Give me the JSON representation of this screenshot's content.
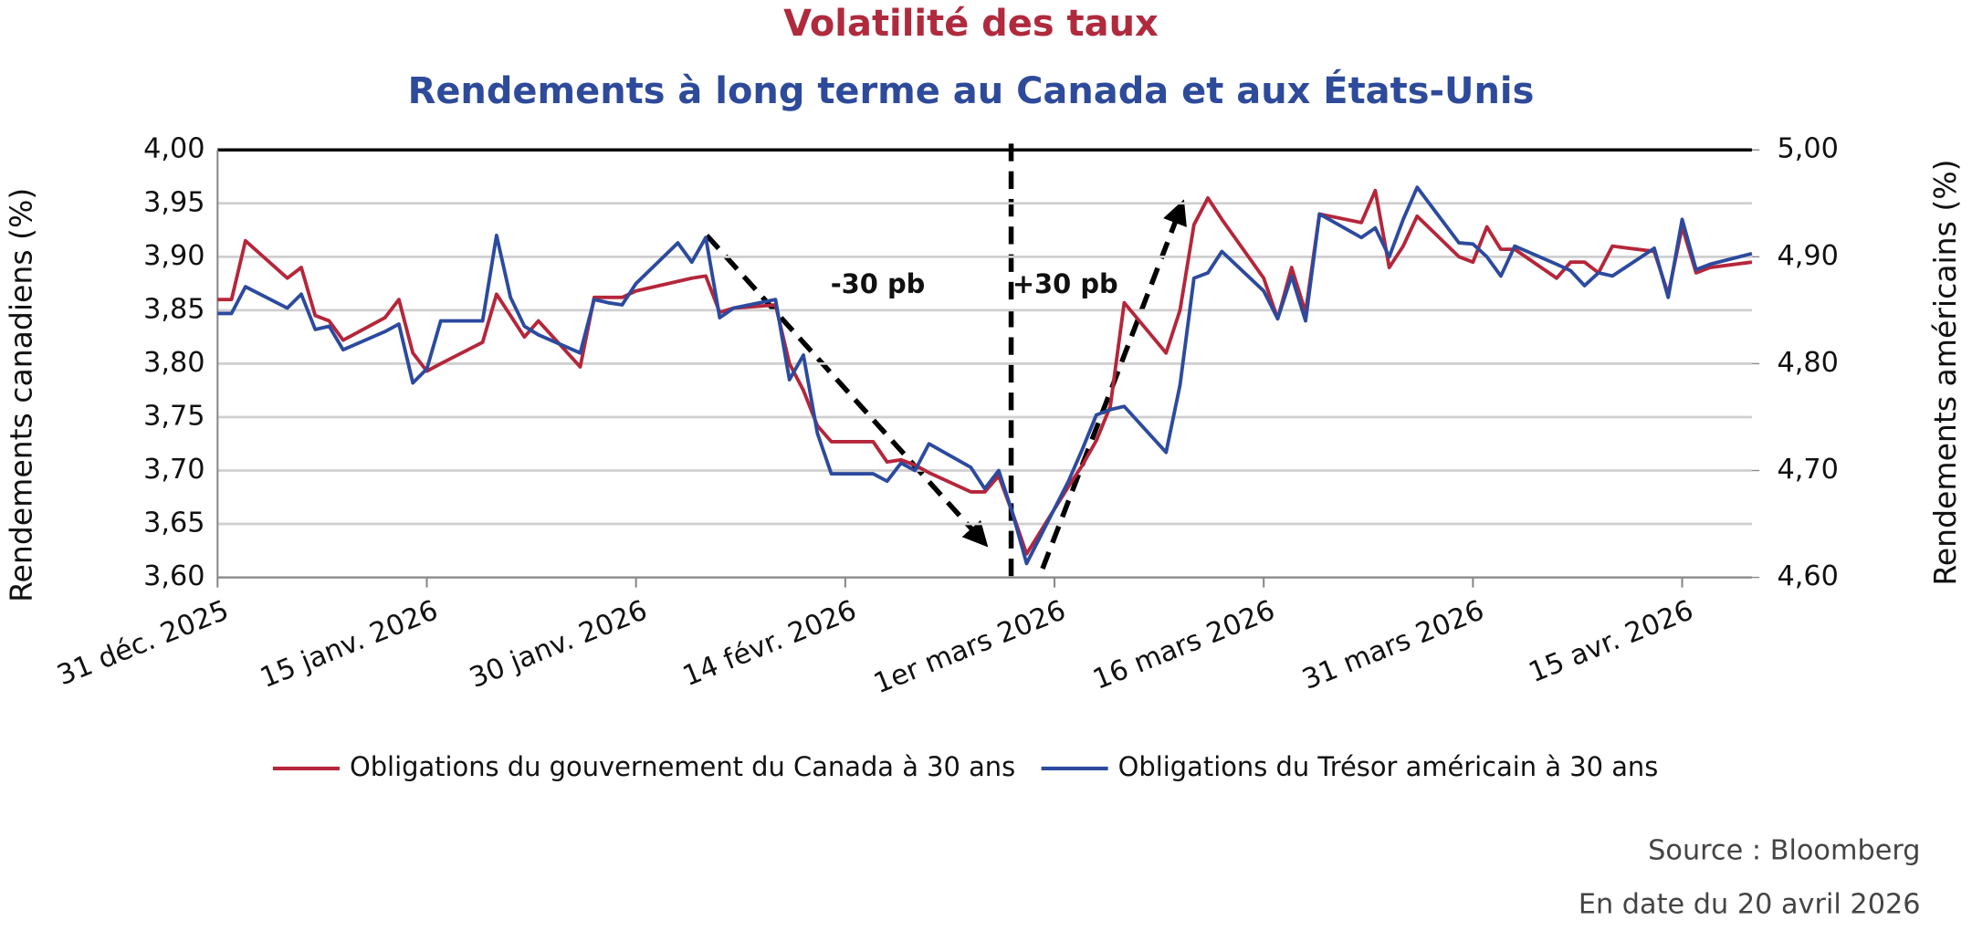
{
  "chart_data": {
    "type": "line",
    "title": "Volatilité des taux",
    "subtitle": "Rendements à long terme au Canada et aux États-Unis",
    "ylabel": "Rendements canadiens (%)",
    "y2label": "Rendements américains (%)",
    "annotations": [
      "-30 pb",
      "+30 pb"
    ],
    "source": "Source : Bloomberg",
    "date_note": "En date du 20 avril 2026",
    "legend": "bottom",
    "grid": true,
    "xlim": [
      "2025-12-31",
      "2026-04-20"
    ],
    "xticks": [
      {
        "value": "2025-12-31",
        "label": "31 déc. 2025"
      },
      {
        "value": "2026-01-15",
        "label": "15 janv. 2026"
      },
      {
        "value": "2026-01-30",
        "label": "30 janv. 2026"
      },
      {
        "value": "2026-02-14",
        "label": "14 févr. 2026"
      },
      {
        "value": "2026-03-01",
        "label": "1er mars 2026"
      },
      {
        "value": "2026-03-16",
        "label": "16 mars 2026"
      },
      {
        "value": "2026-03-31",
        "label": "31 mars 2026"
      },
      {
        "value": "2026-04-15",
        "label": "15 avr. 2026"
      }
    ],
    "ylim": [
      3.6,
      4.0
    ],
    "yticks": [
      {
        "value": 3.6,
        "label": "3,60"
      },
      {
        "value": 3.65,
        "label": "3,65"
      },
      {
        "value": 3.7,
        "label": "3,70"
      },
      {
        "value": 3.75,
        "label": "3,75"
      },
      {
        "value": 3.8,
        "label": "3,80"
      },
      {
        "value": 3.85,
        "label": "3,85"
      },
      {
        "value": 3.9,
        "label": "3,90"
      },
      {
        "value": 3.95,
        "label": "3,95"
      },
      {
        "value": 4.0,
        "label": "4,00"
      }
    ],
    "y2lim": [
      4.6,
      5.0
    ],
    "y2ticks": [
      {
        "value": 4.6,
        "label": "4,60"
      },
      {
        "value": 4.7,
        "label": "4,70"
      },
      {
        "value": 4.8,
        "label": "4,80"
      },
      {
        "value": 4.9,
        "label": "4,90"
      },
      {
        "value": 5.0,
        "label": "5,00"
      }
    ],
    "x": [
      "2025-12-31",
      "2026-01-01",
      "2026-01-02",
      "2026-01-05",
      "2026-01-06",
      "2026-01-07",
      "2026-01-08",
      "2026-01-09",
      "2026-01-12",
      "2026-01-13",
      "2026-01-14",
      "2026-01-15",
      "2026-01-16",
      "2026-01-19",
      "2026-01-20",
      "2026-01-21",
      "2026-01-22",
      "2026-01-23",
      "2026-01-26",
      "2026-01-27",
      "2026-01-28",
      "2026-01-29",
      "2026-01-30",
      "2026-02-02",
      "2026-02-03",
      "2026-02-04",
      "2026-02-05",
      "2026-02-06",
      "2026-02-09",
      "2026-02-10",
      "2026-02-11",
      "2026-02-12",
      "2026-02-13",
      "2026-02-16",
      "2026-02-17",
      "2026-02-18",
      "2026-02-19",
      "2026-02-20",
      "2026-02-23",
      "2026-02-24",
      "2026-02-25",
      "2026-02-26",
      "2026-02-27",
      "2026-03-02",
      "2026-03-03",
      "2026-03-04",
      "2026-03-05",
      "2026-03-06",
      "2026-03-09",
      "2026-03-10",
      "2026-03-11",
      "2026-03-12",
      "2026-03-13",
      "2026-03-16",
      "2026-03-17",
      "2026-03-18",
      "2026-03-19",
      "2026-03-20",
      "2026-03-23",
      "2026-03-24",
      "2026-03-25",
      "2026-03-26",
      "2026-03-27",
      "2026-03-30",
      "2026-03-31",
      "2026-04-01",
      "2026-04-02",
      "2026-04-03",
      "2026-04-06",
      "2026-04-07",
      "2026-04-08",
      "2026-04-09",
      "2026-04-10",
      "2026-04-13",
      "2026-04-14",
      "2026-04-15",
      "2026-04-16",
      "2026-04-17",
      "2026-04-20"
    ],
    "series": [
      {
        "name": "Obligations du gouvernement du Canada à 30 ans",
        "color": "#b5263a",
        "axis": "y",
        "values": [
          3.86,
          3.86,
          3.915,
          3.88,
          3.89,
          3.845,
          3.84,
          3.822,
          3.843,
          3.86,
          3.81,
          3.793,
          3.8,
          3.82,
          3.865,
          3.845,
          3.825,
          3.84,
          3.797,
          3.862,
          3.862,
          3.862,
          3.868,
          3.877,
          3.88,
          3.882,
          3.848,
          3.852,
          3.855,
          3.8,
          3.775,
          3.742,
          3.727,
          3.727,
          3.708,
          3.71,
          3.705,
          3.698,
          3.68,
          3.68,
          3.695,
          3.66,
          3.622,
          3.685,
          3.705,
          3.728,
          3.76,
          3.857,
          3.81,
          3.85,
          3.93,
          3.955,
          3.935,
          3.88,
          3.842,
          3.89,
          3.848,
          3.94,
          3.932,
          3.962,
          3.89,
          3.91,
          3.938,
          3.9,
          3.895,
          3.928,
          3.907,
          3.907,
          3.88,
          3.895,
          3.895,
          3.885,
          3.91,
          3.905,
          3.865,
          3.928,
          3.885,
          3.89,
          3.895
        ]
      },
      {
        "name": "Obligations du Trésor américain à 30 ans",
        "color": "#2c4a9e",
        "axis": "y2",
        "values": [
          4.847,
          4.847,
          4.872,
          4.852,
          4.865,
          4.832,
          4.835,
          4.813,
          4.83,
          4.837,
          4.782,
          4.795,
          4.84,
          4.84,
          4.92,
          4.862,
          4.835,
          4.827,
          4.81,
          4.86,
          4.857,
          4.855,
          4.875,
          4.913,
          4.895,
          4.918,
          4.843,
          4.852,
          4.86,
          4.785,
          4.808,
          4.735,
          4.697,
          4.697,
          4.69,
          4.707,
          4.7,
          4.725,
          4.703,
          4.683,
          4.7,
          4.66,
          4.613,
          4.69,
          4.72,
          4.752,
          4.757,
          4.76,
          4.717,
          4.78,
          4.88,
          4.885,
          4.905,
          4.868,
          4.842,
          4.882,
          4.84,
          4.94,
          4.918,
          4.927,
          4.9,
          4.935,
          4.965,
          4.913,
          4.912,
          4.9,
          4.882,
          4.91,
          4.893,
          4.887,
          4.873,
          4.885,
          4.882,
          4.908,
          4.862,
          4.935,
          4.888,
          4.893,
          4.903
        ]
      }
    ]
  }
}
